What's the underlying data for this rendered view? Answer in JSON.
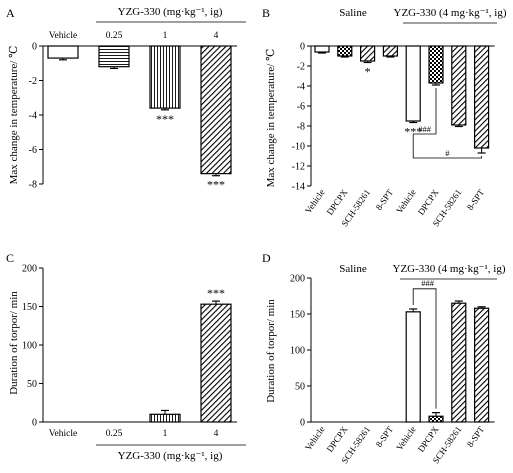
{
  "chart_data": [
    {
      "panel": "A",
      "type": "bar",
      "group_label": "YZG-330 (mg·kg⁻¹, ig)",
      "categories": [
        "Vehicle",
        "0.25",
        "1",
        "4"
      ],
      "values": [
        -0.7,
        -1.2,
        -3.6,
        -7.4
      ],
      "errors": [
        0.1,
        0.1,
        0.1,
        0.12
      ],
      "patterns": [
        "open",
        "horizontal",
        "vertical",
        "diagonal"
      ],
      "significance": [
        "",
        "",
        "***",
        "***"
      ],
      "ylabel": "Max change in temperature/ ℃",
      "ylim": [
        -8,
        0
      ],
      "yticks": [
        "0",
        "-2",
        "-4",
        "-6",
        "-8"
      ],
      "tick_values": [
        0,
        -2,
        -4,
        -6,
        -8
      ]
    },
    {
      "panel": "B",
      "type": "bar",
      "group_labels": [
        "Saline",
        "YZG-330 (4 mg·kg⁻¹, ig)"
      ],
      "categories": [
        "Vehicle",
        "DPCPX",
        "SCH-58261",
        "8-SPT",
        "Vehicle",
        "DPCPX",
        "SCH-58261",
        "8-SPT"
      ],
      "values": [
        -0.6,
        -1.0,
        -1.5,
        -1.0,
        -7.5,
        -3.7,
        -7.9,
        -10.2
      ],
      "errors": [
        0.1,
        0.1,
        0.15,
        0.1,
        0.15,
        0.2,
        0.15,
        0.5
      ],
      "patterns": [
        "open",
        "checker",
        "diagonal",
        "diagonal",
        "open",
        "checker",
        "diagonal",
        "diagonal"
      ],
      "significance": [
        "",
        "",
        "*",
        "",
        "***",
        "",
        "",
        ""
      ],
      "comparisons": [
        {
          "label": "###",
          "from": 4,
          "to": 5
        },
        {
          "label": "#",
          "from": 4,
          "to": 7
        }
      ],
      "ylabel": "Max change in temperature/ ℃",
      "ylim": [
        -14,
        0
      ],
      "yticks": [
        "0",
        "-2",
        "-4",
        "-6",
        "-8",
        "-10",
        "-12",
        "-14"
      ],
      "tick_values": [
        0,
        -2,
        -4,
        -6,
        -8,
        -10,
        -12,
        -14
      ]
    },
    {
      "panel": "C",
      "type": "bar",
      "group_label": "YZG-330 (mg·kg⁻¹, ig)",
      "categories": [
        "Vehicle",
        "0.25",
        "1",
        "4"
      ],
      "values": [
        0,
        0,
        10,
        153
      ],
      "errors": [
        0,
        0,
        5,
        4
      ],
      "patterns": [
        "open",
        "horizontal",
        "vertical",
        "diagonal"
      ],
      "significance": [
        "",
        "",
        "",
        "***"
      ],
      "ylabel": "Duration of torpor/ min",
      "ylim": [
        0,
        200
      ],
      "yticks": [
        "0",
        "50",
        "100",
        "150",
        "200"
      ],
      "tick_values": [
        0,
        50,
        100,
        150,
        200
      ]
    },
    {
      "panel": "D",
      "type": "bar",
      "group_labels": [
        "Saline",
        "YZG-330 (4 mg·kg⁻¹, ig)"
      ],
      "categories": [
        "Vehicle",
        "DPCPX",
        "SCH-58261",
        "8-SPT",
        "Vehicle",
        "DPCPX",
        "SCH-58261",
        "8-SPT"
      ],
      "values": [
        0,
        0,
        0,
        0,
        153,
        8,
        165,
        158
      ],
      "errors": [
        0,
        0,
        0,
        0,
        4,
        5,
        3,
        2
      ],
      "patterns": [
        "open",
        "checker",
        "diagonal",
        "diagonal",
        "open",
        "checker",
        "diagonal",
        "diagonal"
      ],
      "significance": [
        "",
        "",
        "",
        "",
        "",
        "",
        "",
        ""
      ],
      "comparisons": [
        {
          "label": "###",
          "from": 4,
          "to": 5
        }
      ],
      "ylabel": "Duration of torpor/ min",
      "ylim": [
        0,
        200
      ],
      "yticks": [
        "0",
        "50",
        "100",
        "150",
        "200"
      ],
      "tick_values": [
        0,
        50,
        100,
        150,
        200
      ]
    }
  ]
}
